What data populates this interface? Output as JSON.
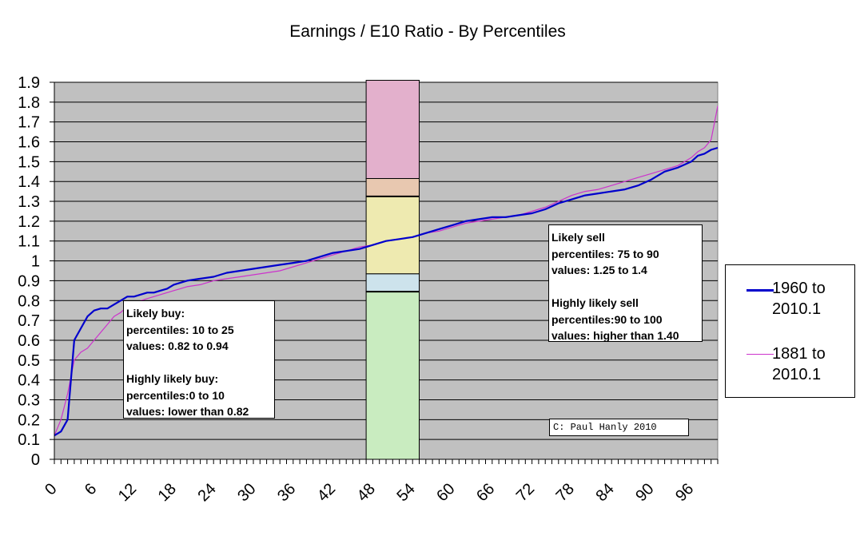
{
  "chart_data": {
    "type": "line",
    "title": "Earnings / E10 Ratio - By Percentiles",
    "xlabel": "",
    "ylabel": "",
    "xlim": [
      0,
      100
    ],
    "ylim": [
      0,
      1.9
    ],
    "y_ticks": [
      "0",
      "0.1",
      "0.2",
      "0.3",
      "0.4",
      "0.5",
      "0.6",
      "0.7",
      "0.8",
      "0.9",
      "1",
      "1.1",
      "1.2",
      "1.3",
      "1.4",
      "1.5",
      "1.6",
      "1.7",
      "1.8",
      "1.9"
    ],
    "y_tick_values": [
      0,
      0.1,
      0.2,
      0.3,
      0.4,
      0.5,
      0.6,
      0.7,
      0.8,
      0.9,
      1.0,
      1.1,
      1.2,
      1.3,
      1.4,
      1.5,
      1.6,
      1.7,
      1.8,
      1.9
    ],
    "x_ticks": [
      "0",
      "6",
      "12",
      "18",
      "24",
      "30",
      "36",
      "42",
      "48",
      "54",
      "60",
      "66",
      "72",
      "78",
      "84",
      "90",
      "96"
    ],
    "x_tick_values": [
      0,
      6,
      12,
      18,
      24,
      30,
      36,
      42,
      48,
      54,
      60,
      66,
      72,
      78,
      84,
      90,
      96
    ],
    "grid": true,
    "legend_position": "right",
    "background_color": "#c0c0c0",
    "series": [
      {
        "name": "1960 to 2010.1",
        "color": "#0000cc",
        "x": [
          0,
          1,
          2,
          3,
          4,
          5,
          6,
          7,
          8,
          9,
          10,
          11,
          12,
          13,
          14,
          15,
          16,
          17,
          18,
          19,
          20,
          22,
          24,
          26,
          28,
          30,
          32,
          34,
          36,
          38,
          40,
          42,
          44,
          46,
          48,
          50,
          52,
          54,
          56,
          58,
          60,
          62,
          64,
          66,
          68,
          70,
          72,
          74,
          76,
          78,
          80,
          82,
          84,
          86,
          88,
          90,
          92,
          94,
          96,
          97,
          98,
          99,
          100
        ],
        "y": [
          0.12,
          0.14,
          0.2,
          0.6,
          0.66,
          0.72,
          0.75,
          0.76,
          0.76,
          0.78,
          0.8,
          0.82,
          0.82,
          0.83,
          0.84,
          0.84,
          0.85,
          0.86,
          0.88,
          0.89,
          0.9,
          0.91,
          0.92,
          0.94,
          0.95,
          0.96,
          0.97,
          0.98,
          0.99,
          1.0,
          1.02,
          1.04,
          1.05,
          1.06,
          1.08,
          1.1,
          1.11,
          1.12,
          1.14,
          1.16,
          1.18,
          1.2,
          1.21,
          1.22,
          1.22,
          1.23,
          1.24,
          1.26,
          1.29,
          1.31,
          1.33,
          1.34,
          1.35,
          1.36,
          1.38,
          1.41,
          1.45,
          1.47,
          1.5,
          1.53,
          1.54,
          1.56,
          1.57
        ]
      },
      {
        "name": "1881 to 2010.1",
        "color": "#cc33cc",
        "x": [
          0,
          1,
          2,
          3,
          4,
          5,
          6,
          7,
          8,
          9,
          10,
          11,
          12,
          13,
          14,
          15,
          16,
          17,
          18,
          19,
          20,
          22,
          24,
          26,
          28,
          30,
          32,
          34,
          36,
          38,
          40,
          42,
          44,
          46,
          48,
          50,
          52,
          54,
          56,
          58,
          60,
          62,
          64,
          66,
          68,
          70,
          72,
          74,
          76,
          78,
          80,
          82,
          84,
          86,
          88,
          90,
          92,
          94,
          96,
          97,
          98,
          99,
          100
        ],
        "y": [
          0.12,
          0.2,
          0.33,
          0.5,
          0.54,
          0.56,
          0.6,
          0.64,
          0.68,
          0.72,
          0.74,
          0.77,
          0.78,
          0.8,
          0.81,
          0.82,
          0.83,
          0.84,
          0.85,
          0.86,
          0.87,
          0.88,
          0.9,
          0.91,
          0.92,
          0.93,
          0.94,
          0.95,
          0.97,
          0.99,
          1.01,
          1.03,
          1.05,
          1.07,
          1.08,
          1.1,
          1.11,
          1.12,
          1.14,
          1.15,
          1.17,
          1.19,
          1.2,
          1.21,
          1.22,
          1.23,
          1.25,
          1.27,
          1.3,
          1.33,
          1.35,
          1.36,
          1.38,
          1.4,
          1.42,
          1.44,
          1.46,
          1.48,
          1.52,
          1.55,
          1.57,
          1.61,
          1.78
        ]
      }
    ],
    "bands": {
      "x_start": 47,
      "x_end": 55,
      "regions": [
        {
          "name": "highly-likely-buy",
          "y0": 0.0,
          "y1": 0.845,
          "color": "#c9ecc0"
        },
        {
          "name": "likely-buy",
          "y0": 0.845,
          "y1": 0.935,
          "color": "#cde3ec"
        },
        {
          "name": "neutral",
          "y0": 0.935,
          "y1": 1.325,
          "color": "#eeeab0"
        },
        {
          "name": "likely-sell",
          "y0": 1.325,
          "y1": 1.415,
          "color": "#e8c8b0"
        },
        {
          "name": "highly-likely-sell",
          "y0": 1.415,
          "y1": 1.91,
          "color": "#e3b0cc"
        }
      ]
    },
    "annotations": {
      "buy": [
        "Likely buy:",
        "percentiles: 10 to 25",
        "values: 0.82 to 0.94",
        "Highly likely buy:",
        "percentiles:0 to 10",
        "values: lower than 0.82"
      ],
      "sell": [
        "Likely sell",
        "percentiles: 75 to 90",
        "values: 1.25 to 1.4",
        "Highly likely sell",
        "percentiles:90 to 100",
        "values: higher than 1.40"
      ],
      "credit": "C: Paul Hanly 2010"
    },
    "legend": [
      {
        "line1": "1960 to",
        "line2": "2010.1"
      },
      {
        "line1": "1881 to",
        "line2": "2010.1"
      }
    ]
  }
}
